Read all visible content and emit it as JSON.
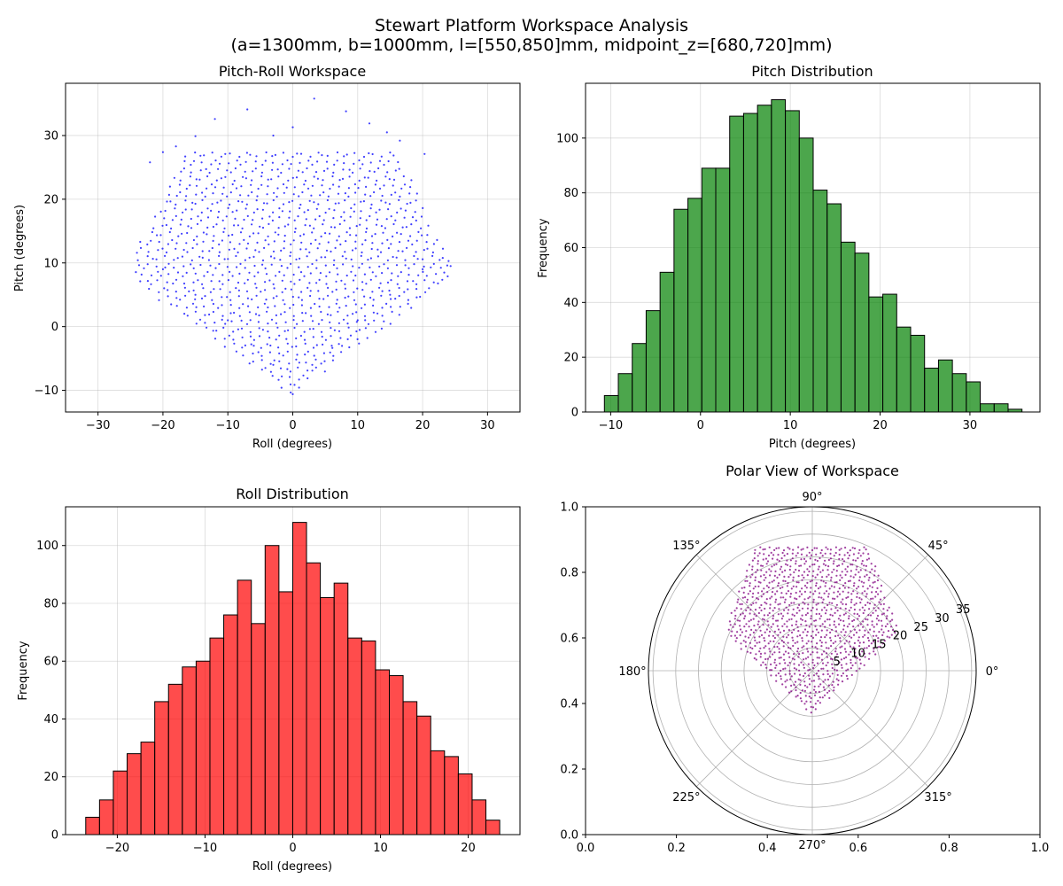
{
  "figure": {
    "title_line1": "Stewart Platform Workspace Analysis",
    "title_line2": "(a=1300mm, b=1000mm, l=[550,850]mm, midpoint_z=[680,720]mm)"
  },
  "colors": {
    "scatter": "#0000ff",
    "pitch_hist": "#008000",
    "roll_hist": "#ff0000",
    "polar": "#800080",
    "edge": "#000000",
    "grid": "#b0b0b0"
  },
  "chart_data": [
    {
      "id": "pitch-roll",
      "type": "scatter",
      "title": "Pitch-Roll Workspace",
      "xlabel": "Roll (degrees)",
      "ylabel": "Pitch (degrees)",
      "xlim": [
        -35,
        35
      ],
      "ylim": [
        -13.4,
        38.2
      ],
      "xticks": [
        -30,
        -20,
        -10,
        0,
        10,
        20,
        30
      ],
      "yticks": [
        -10,
        0,
        10,
        20,
        30
      ],
      "grid": true,
      "description_of_points": "dense grid of workspace samples bounded by a downward-pointing wedge",
      "outline_points": [
        [
          -22,
          25.8
        ],
        [
          -20,
          27.4
        ],
        [
          -18,
          28.3
        ],
        [
          -15,
          29.9
        ],
        [
          -12,
          32.6
        ],
        [
          -7,
          34.1
        ],
        [
          -3,
          30
        ],
        [
          0,
          31.3
        ],
        [
          3.3,
          35.8
        ],
        [
          8.2,
          33.8
        ],
        [
          11.8,
          31.9
        ],
        [
          14.5,
          30.5
        ],
        [
          16.5,
          29.2
        ],
        [
          20.3,
          27.1
        ],
        [
          -23.5,
          13.3
        ],
        [
          -24,
          11.6
        ],
        [
          -20,
          9
        ],
        [
          -15,
          5
        ],
        [
          -10,
          1
        ],
        [
          -6,
          -3
        ],
        [
          -3,
          -6
        ],
        [
          0,
          -10.6
        ],
        [
          3,
          -6
        ],
        [
          6,
          -3
        ],
        [
          10,
          1
        ],
        [
          15,
          5
        ],
        [
          20,
          9
        ],
        [
          24,
          10.3
        ],
        [
          23.8,
          9.6
        ]
      ]
    },
    {
      "id": "pitch-dist",
      "type": "bar",
      "title": "Pitch Distribution",
      "xlabel": "Pitch (degrees)",
      "ylabel": "Frequency",
      "xlim": [
        -12.8,
        37.8
      ],
      "ylim": [
        0,
        120
      ],
      "xticks": [
        -10,
        0,
        10,
        20,
        30
      ],
      "yticks": [
        0,
        20,
        40,
        60,
        80,
        100
      ],
      "bin_start": -10.7,
      "bin_width": 1.55,
      "values": [
        6,
        14,
        25,
        37,
        51,
        74,
        78,
        89,
        89,
        108,
        109,
        112,
        114,
        110,
        100,
        81,
        76,
        62,
        58,
        42,
        43,
        31,
        28,
        16,
        19,
        14,
        11,
        3,
        3,
        1
      ],
      "grid": true
    },
    {
      "id": "roll-dist",
      "type": "bar",
      "title": "Roll Distribution",
      "xlabel": "Roll (degrees)",
      "ylabel": "Frequency",
      "xlim": [
        -25.9,
        25.9
      ],
      "ylim": [
        0,
        113.4
      ],
      "xticks": [
        -20,
        -10,
        0,
        10,
        20
      ],
      "yticks": [
        0,
        20,
        40,
        60,
        80,
        100
      ],
      "bin_start": -23.6,
      "bin_width": 1.573,
      "values": [
        6,
        12,
        22,
        28,
        32,
        46,
        52,
        58,
        60,
        68,
        76,
        88,
        73,
        100,
        84,
        108,
        94,
        82,
        87,
        68,
        67,
        57,
        55,
        46,
        41,
        29,
        27,
        21,
        12,
        5
      ],
      "grid": true
    },
    {
      "id": "polar-view",
      "type": "scatter",
      "title": "Polar View of Workspace",
      "projection": "polar",
      "theta_ticks": [
        "0°",
        "45°",
        "90°",
        "135°",
        "180°",
        "225°",
        "270°",
        "315°"
      ],
      "r_ticks": [
        "5",
        "10",
        "15",
        "20",
        "25",
        "30",
        "35"
      ],
      "r_max": 36,
      "frame_xticks": [
        "0.0",
        "0.2",
        "0.4",
        "0.6",
        "0.8",
        "1.0"
      ],
      "frame_yticks": [
        "0.0",
        "0.2",
        "0.4",
        "0.6",
        "0.8",
        "1.0"
      ],
      "grid": true
    }
  ]
}
